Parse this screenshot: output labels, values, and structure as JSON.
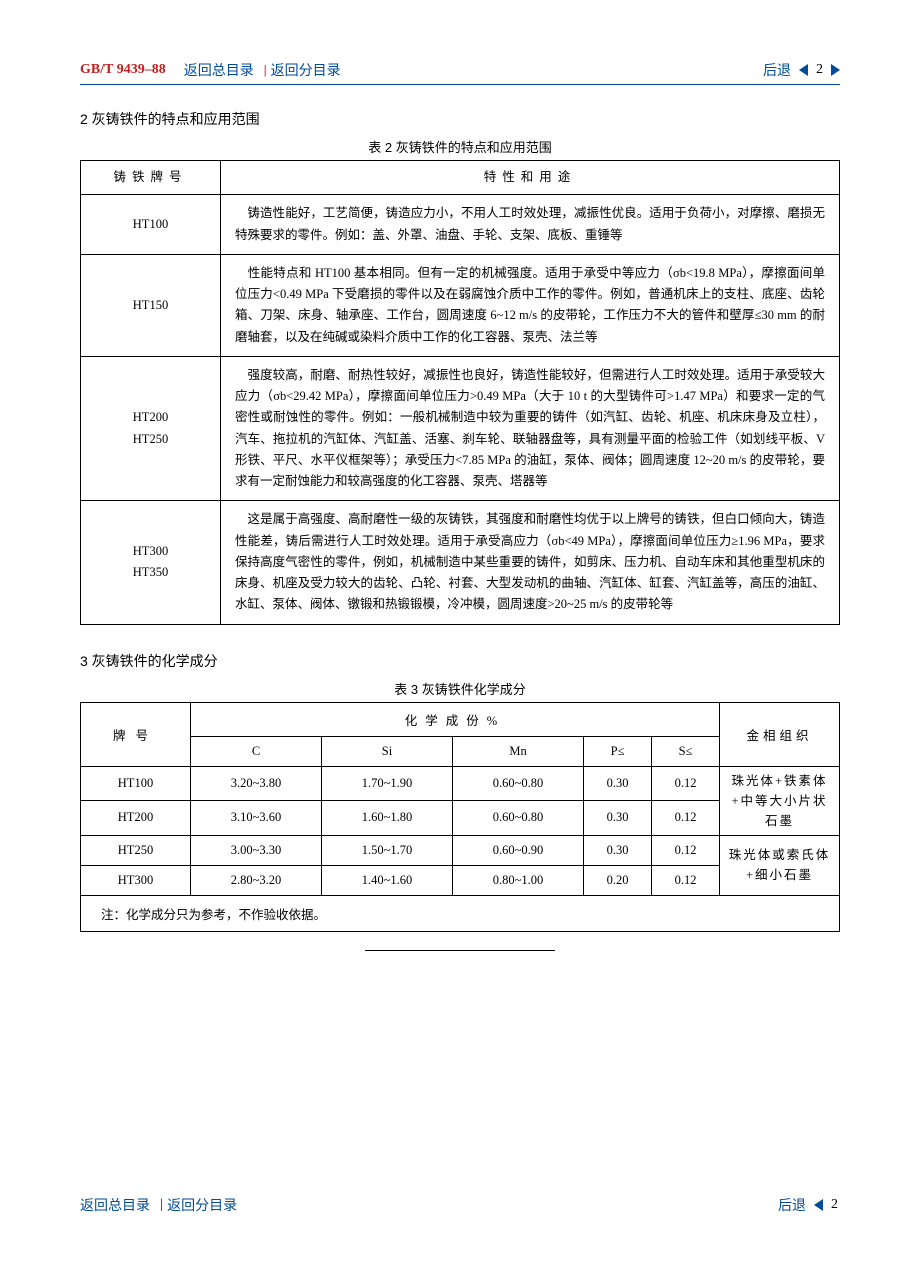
{
  "doc_id": "GB/T 9439–88",
  "nav": {
    "back_to_main_toc": "返回总目录",
    "back_to_sub_toc": "返回分目录",
    "back": "后退",
    "page_number": "2"
  },
  "section2": {
    "title": "2  灰铸铁件的特点和应用范围",
    "table_caption": "表 2   灰铸铁件的特点和应用范围",
    "headers": {
      "col1": "铸铁牌号",
      "col2": "特性和用途"
    },
    "rows": [
      {
        "grade": "HT100",
        "desc": "　铸造性能好，工艺简便，铸造应力小，不用人工时效处理，减振性优良。适用于负荷小，对摩擦、磨损无特殊要求的零件。例如：盖、外罩、油盘、手轮、支架、底板、重锤等"
      },
      {
        "grade": "HT150",
        "desc": "　性能特点和 HT100 基本相同。但有一定的机械强度。适用于承受中等应力（σb<19.8 MPa），摩擦面间单位压力<0.49 MPa 下受磨损的零件以及在弱腐蚀介质中工作的零件。例如，普通机床上的支柱、底座、齿轮箱、刀架、床身、轴承座、工作台，圆周速度 6~12 m/s 的皮带轮，工作压力不大的管件和壁厚≤30 mm 的耐磨轴套，以及在纯碱或染料介质中工作的化工容器、泵壳、法兰等"
      },
      {
        "grade": "HT200\nHT250",
        "desc": "　强度较高，耐磨、耐热性较好，减振性也良好，铸造性能较好，但需进行人工时效处理。适用于承受较大应力（σb<29.42 MPa），摩擦面间单位压力>0.49 MPa（大于 10 t 的大型铸件可>1.47 MPa）和要求一定的气密性或耐蚀性的零件。例如：一般机械制造中较为重要的铸件（如汽缸、齿轮、机座、机床床身及立柱），汽车、拖拉机的汽缸体、汽缸盖、活塞、刹车轮、联轴器盘等，具有测量平面的检验工件（如划线平板、V 形铁、平尺、水平仪框架等）；承受压力<7.85 MPa 的油缸，泵体、阀体；圆周速度 12~20 m/s 的皮带轮，要求有一定耐蚀能力和较高强度的化工容器、泵壳、塔器等"
      },
      {
        "grade": "HT300\nHT350",
        "desc": "　这是属于高强度、高耐磨性一级的灰铸铁，其强度和耐磨性均优于以上牌号的铸铁，但白口倾向大，铸造性能差，铸后需进行人工时效处理。适用于承受高应力（σb<49 MPa），摩擦面间单位压力≥1.96 MPa，要求保持高度气密性的零件，例如，机械制造中某些重要的铸件，如剪床、压力机、自动车床和其他重型机床的床身、机座及受力较大的齿轮、凸轮、衬套、大型发动机的曲轴、汽缸体、缸套、汽缸盖等，高压的油缸、水缸、泵体、阀体、镦锻和热锻锻模，冷冲模，圆周速度>20~25 m/s 的皮带轮等"
      }
    ]
  },
  "section3": {
    "title": "3  灰铸铁件的化学成分",
    "table_caption": "表 3   灰铸铁件化学成分",
    "headers": {
      "grade": "牌号",
      "chem_group": "化学成份%",
      "metal": "金相组织",
      "C": "C",
      "Si": "Si",
      "Mn": "Mn",
      "P": "P≤",
      "S": "S≤"
    },
    "rows": [
      {
        "grade": "HT100",
        "C": "3.20~3.80",
        "Si": "1.70~1.90",
        "Mn": "0.60~0.80",
        "P": "0.30",
        "S": "0.12"
      },
      {
        "grade": "HT200",
        "C": "3.10~3.60",
        "Si": "1.60~1.80",
        "Mn": "0.60~0.80",
        "P": "0.30",
        "S": "0.12"
      },
      {
        "grade": "HT250",
        "C": "3.00~3.30",
        "Si": "1.50~1.70",
        "Mn": "0.60~0.90",
        "P": "0.30",
        "S": "0.12"
      },
      {
        "grade": "HT300",
        "C": "2.80~3.20",
        "Si": "1.40~1.60",
        "Mn": "0.80~1.00",
        "P": "0.20",
        "S": "0.12"
      }
    ],
    "metal_group1": "珠光体+铁素体+中等大小片状石墨",
    "metal_group2": "珠光体或索氏体+细小石墨",
    "note": "注：化学成分只为参考，不作验收依据。"
  },
  "colors": {
    "link": "#004b9b",
    "doc_id": "#c02020",
    "border": "#004b9b"
  }
}
